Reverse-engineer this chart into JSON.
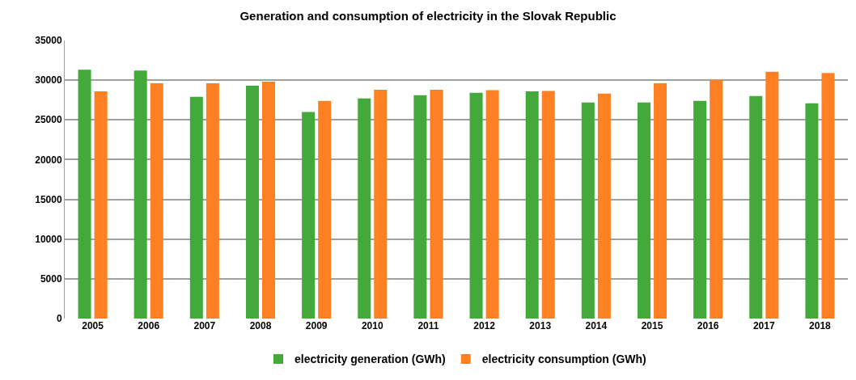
{
  "chart_data": {
    "type": "bar",
    "title": "Generation and consumption of electricity in the Slovak Republic",
    "categories": [
      "2005",
      "2006",
      "2007",
      "2008",
      "2009",
      "2010",
      "2011",
      "2012",
      "2013",
      "2014",
      "2015",
      "2016",
      "2017",
      "2018"
    ],
    "series": [
      {
        "name": "electricity generation (GWh)",
        "color": "#43a93b",
        "values": [
          31300,
          31200,
          27900,
          29300,
          26000,
          27700,
          28100,
          28400,
          28600,
          27200,
          27200,
          27400,
          28000,
          27100
        ]
      },
      {
        "name": "electricity consumption (GWh)",
        "color": "#fe8022",
        "values": [
          28600,
          29600,
          29600,
          29800,
          27400,
          28800,
          28800,
          28750,
          28650,
          28300,
          29600,
          30050,
          31050,
          30900
        ]
      }
    ],
    "ylim": [
      0,
      35000
    ],
    "yticks": [
      0,
      5000,
      10000,
      15000,
      20000,
      25000,
      30000,
      35000
    ],
    "grid": "y",
    "legend": "bottom"
  }
}
